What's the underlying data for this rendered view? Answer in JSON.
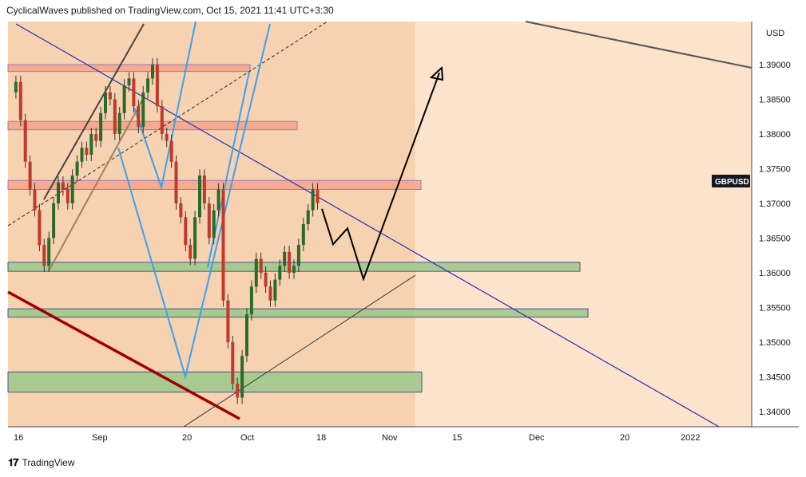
{
  "header": {
    "text": "CyclicalWaves published on TradingView.com, Oct 15, 2021 11:41 UTC+3:30"
  },
  "footer": {
    "brand": "TradingView",
    "logo_icon": "tradingview-logo-icon"
  },
  "chart_data": {
    "type": "candlestick",
    "symbol_label": "GBPUSD",
    "currency": "USD",
    "y_ticks": [
      "1.39000",
      "1.38500",
      "1.38000",
      "1.37500",
      "1.37000",
      "1.36500",
      "1.36000",
      "1.35500",
      "1.35000",
      "1.34500",
      "1.34000"
    ],
    "ylim": [
      1.3378,
      1.3962
    ],
    "x_ticks": [
      "16",
      "Sep",
      "20",
      "Oct",
      "18",
      "Nov",
      "15",
      "Dec",
      "20",
      "2022"
    ],
    "colors": {
      "up": "#26a69a",
      "down": "#ef5350",
      "background_shade": "#fbe3cc",
      "resistance_zone": "#f4a58a",
      "support_zone": "#9cc98a",
      "projection": "#000000",
      "trendline": "#2b2bb3",
      "wave_lines": "#3aa0f0",
      "long_downtrend": "#a00000"
    },
    "zones": [
      {
        "kind": "resistance",
        "top": 1.39,
        "bottom": 1.389
      },
      {
        "kind": "resistance",
        "top": 1.3818,
        "bottom": 1.3806
      },
      {
        "kind": "resistance",
        "top": 1.3733,
        "bottom": 1.372
      },
      {
        "kind": "support",
        "top": 1.3615,
        "bottom": 1.3602
      },
      {
        "kind": "support",
        "top": 1.3548,
        "bottom": 1.3536
      },
      {
        "kind": "support",
        "top": 1.3457,
        "bottom": 1.3428
      }
    ],
    "projection_path": [
      1.3692,
      1.3641,
      1.3664,
      1.3591,
      1.3888
    ]
  }
}
